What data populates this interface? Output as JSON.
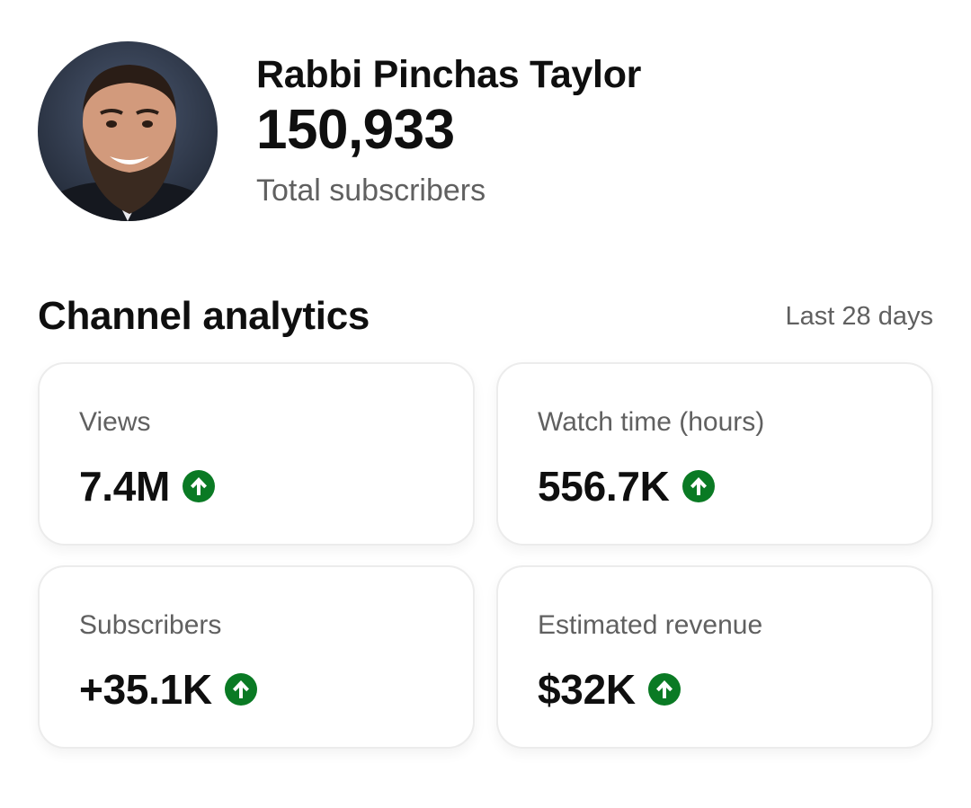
{
  "profile": {
    "channel_name": "Rabbi Pinchas Taylor",
    "subscriber_count": "150,933",
    "subscriber_caption": "Total subscribers"
  },
  "analytics": {
    "title": "Channel analytics",
    "range": "Last 28 days",
    "trend_color": "#0a7a24",
    "cards": [
      {
        "label": "Views",
        "value": "7.4M",
        "trend_icon": "arrow-up-circle-icon"
      },
      {
        "label": "Watch time (hours)",
        "value": "556.7K",
        "trend_icon": "arrow-up-circle-icon"
      },
      {
        "label": "Subscribers",
        "value": "+35.1K",
        "trend_icon": "arrow-up-circle-icon"
      },
      {
        "label": "Estimated revenue",
        "value": "$32K",
        "trend_icon": "arrow-up-circle-icon"
      }
    ]
  }
}
